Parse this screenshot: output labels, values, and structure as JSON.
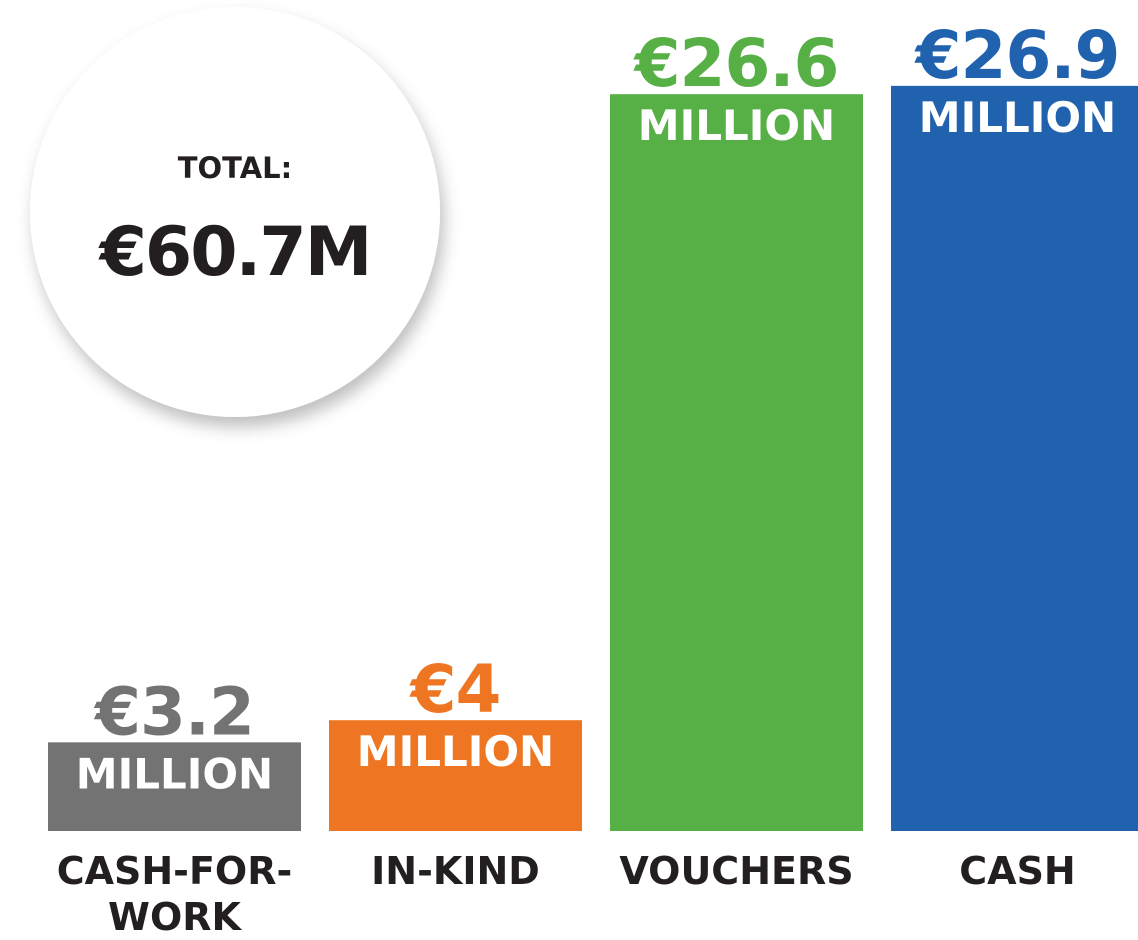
{
  "chart_data": {
    "type": "bar",
    "total_title": "TOTAL:",
    "total_label": "€60.7M",
    "categories": [
      "CASH-FOR-WORK",
      "IN-KIND",
      "VOUCHERS",
      "CASH"
    ],
    "values": [
      3.2,
      4,
      26.6,
      26.9
    ],
    "value_labels": [
      "€3.2",
      "€4",
      "€26.6",
      "€26.9"
    ],
    "unit_label": "MILLION",
    "colors": [
      "#737373",
      "#ee7623",
      "#57b046",
      "#2062ae"
    ],
    "ylim": [
      0,
      30
    ]
  }
}
